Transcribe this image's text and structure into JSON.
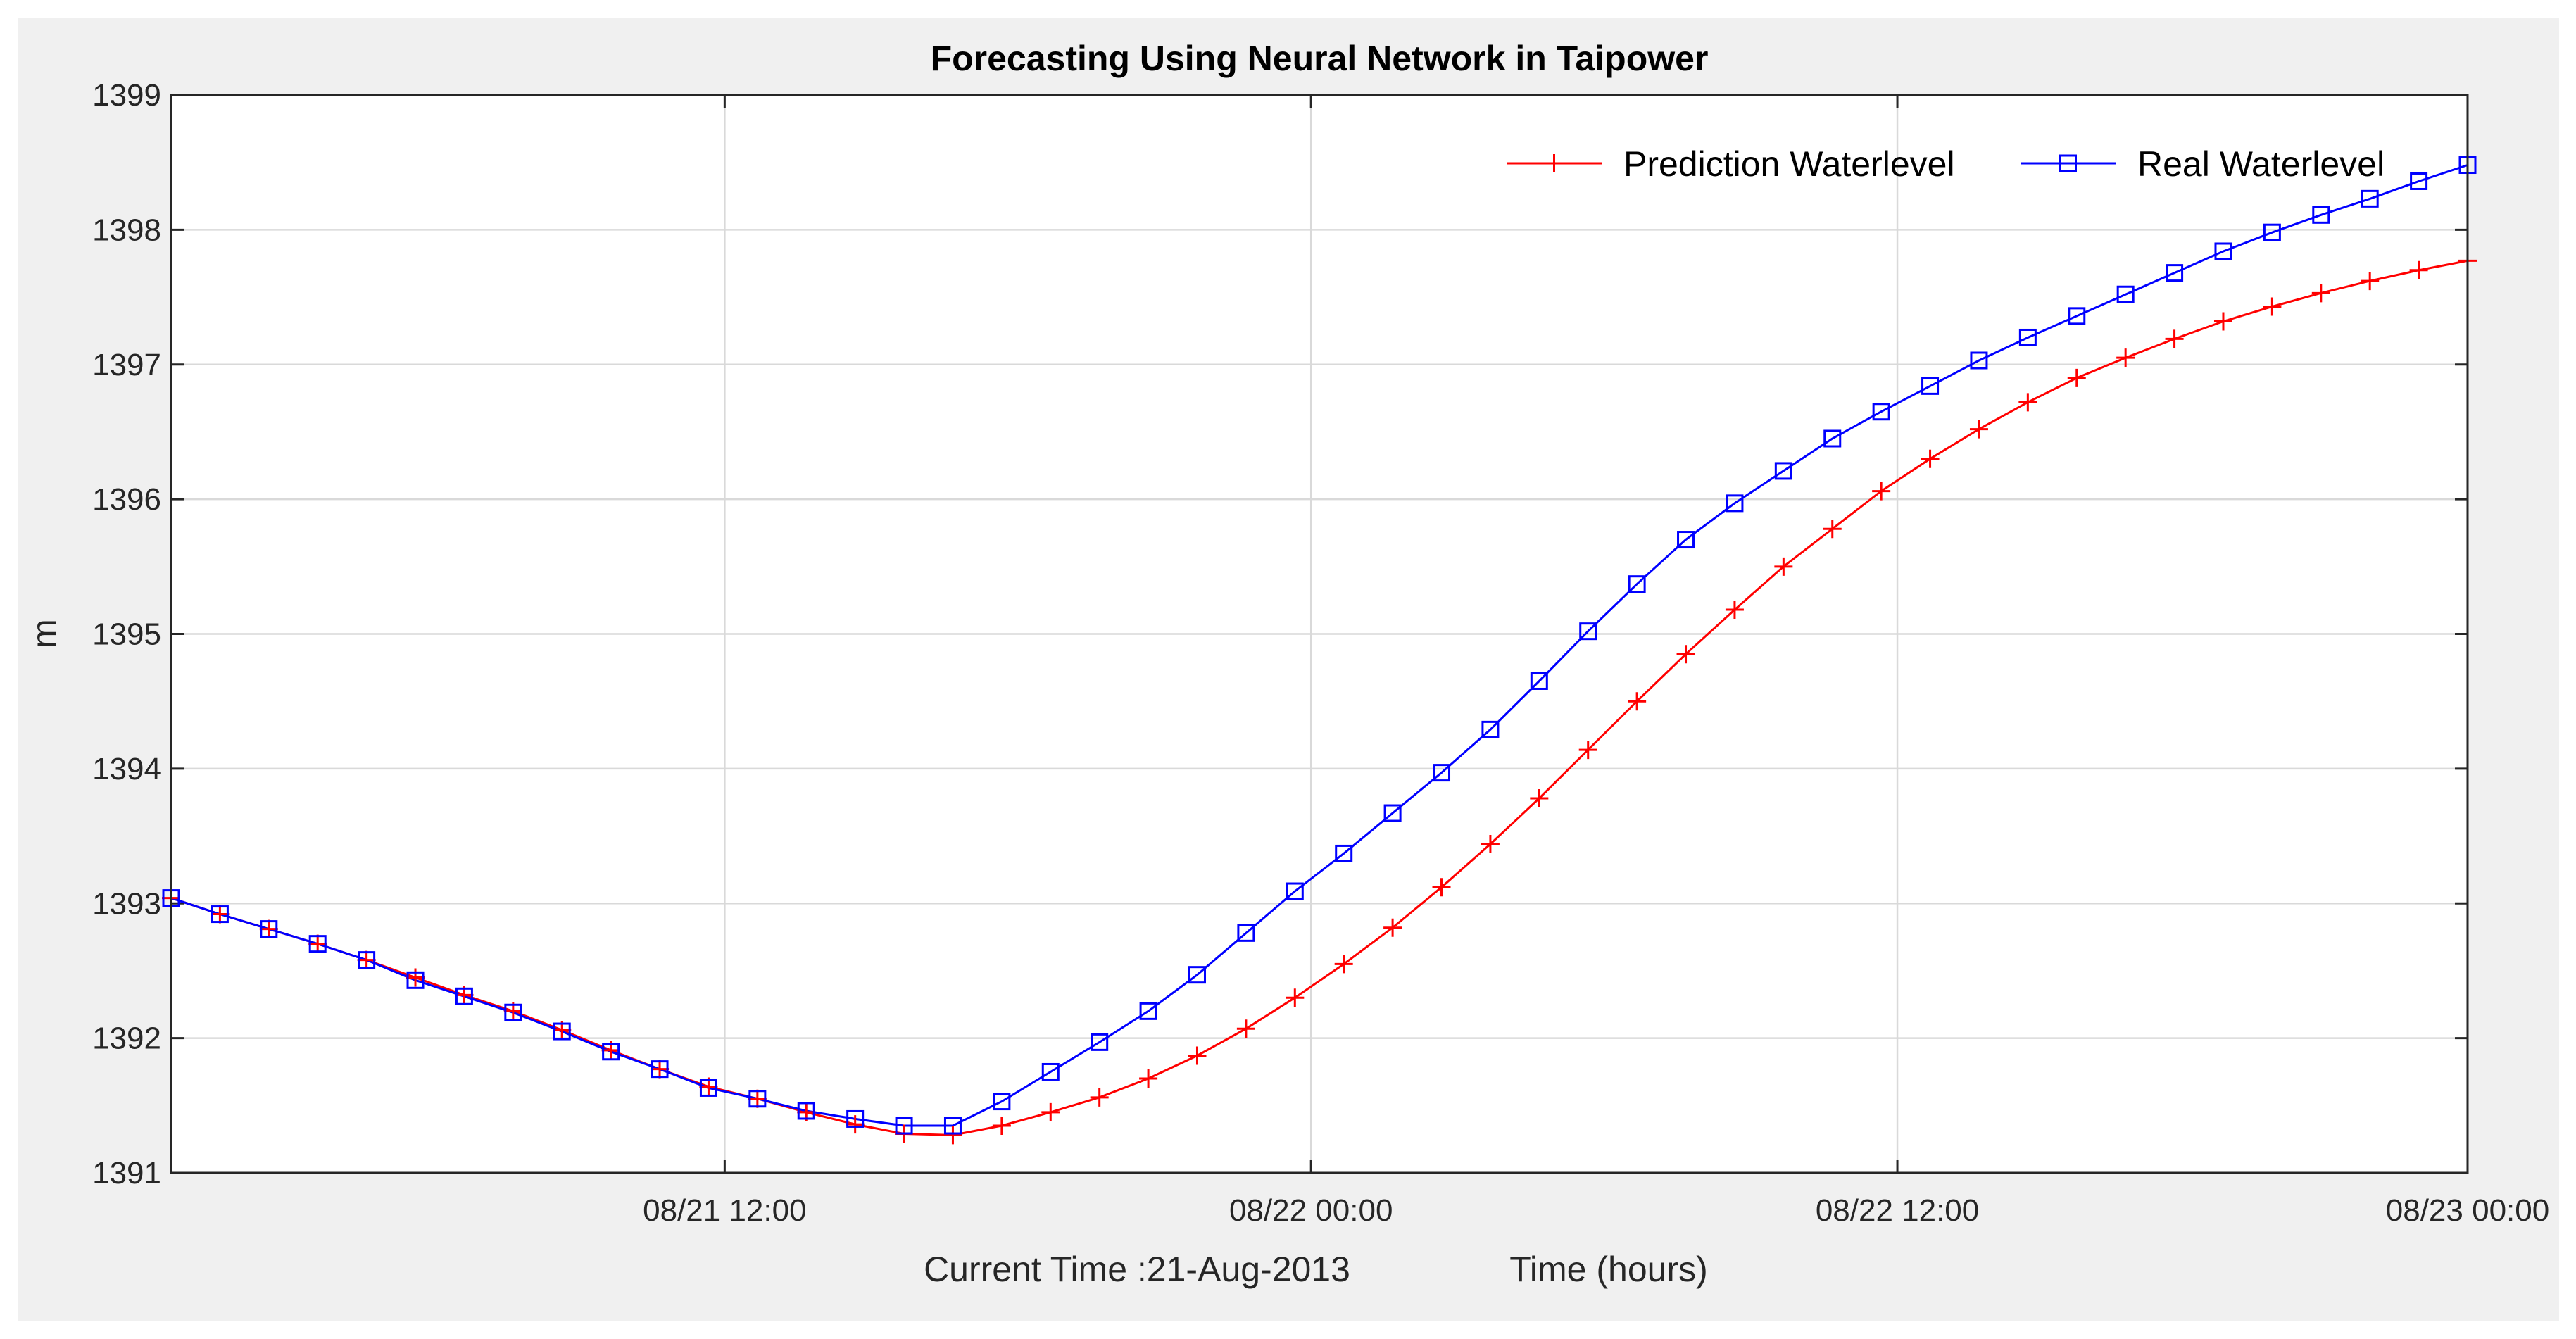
{
  "chart_data": {
    "type": "line",
    "title": "Forecasting Using Neural Network in Taipower",
    "ylabel": "m",
    "xlabel": "Time (hours)",
    "footer_text": "Current Time :21-Aug-2013",
    "ylim": [
      1391,
      1399
    ],
    "xlim": [
      0,
      47
    ],
    "x_ticks": [
      {
        "x": 11.33,
        "label": "08/21 12:00"
      },
      {
        "x": 23.33,
        "label": "08/22 00:00"
      },
      {
        "x": 35.33,
        "label": "08/22 12:00"
      },
      {
        "x": 47,
        "label": "08/23 00:00"
      }
    ],
    "y_ticks": [
      1391,
      1392,
      1393,
      1394,
      1395,
      1396,
      1397,
      1398,
      1399
    ],
    "grid": true,
    "legend_position": "top-right",
    "series": [
      {
        "name": "Prediction Waterlevel",
        "color": "#ff0000",
        "marker": "plus",
        "x": [
          0,
          1,
          2,
          3,
          4,
          5,
          6,
          7,
          8,
          9,
          10,
          11,
          12,
          13,
          14,
          15,
          16,
          17,
          18,
          19,
          20,
          21,
          22,
          23,
          24,
          25,
          26,
          27,
          28,
          29,
          30,
          31,
          32,
          33,
          34,
          35,
          36,
          37,
          38,
          39,
          40,
          41,
          42,
          43,
          44,
          45,
          46,
          47
        ],
        "values": [
          1393.04,
          1392.92,
          1392.81,
          1392.7,
          1392.58,
          1392.45,
          1392.32,
          1392.2,
          1392.06,
          1391.91,
          1391.77,
          1391.64,
          1391.55,
          1391.45,
          1391.36,
          1391.29,
          1391.28,
          1391.35,
          1391.45,
          1391.56,
          1391.7,
          1391.87,
          1392.07,
          1392.3,
          1392.55,
          1392.82,
          1393.12,
          1393.44,
          1393.78,
          1394.14,
          1394.5,
          1394.85,
          1395.18,
          1395.5,
          1395.78,
          1396.06,
          1396.3,
          1396.52,
          1396.72,
          1396.9,
          1397.05,
          1397.19,
          1397.32,
          1397.43,
          1397.53,
          1397.62,
          1397.7,
          1397.77
        ]
      },
      {
        "name": "Real Waterlevel",
        "color": "#0000ff",
        "marker": "square",
        "x": [
          0,
          1,
          2,
          3,
          4,
          5,
          6,
          7,
          8,
          9,
          10,
          11,
          12,
          13,
          14,
          15,
          16,
          17,
          18,
          19,
          20,
          21,
          22,
          23,
          24,
          25,
          26,
          27,
          28,
          29,
          30,
          31,
          32,
          33,
          34,
          35,
          36,
          37,
          38,
          39,
          40,
          41,
          42,
          43,
          44,
          45,
          46,
          47
        ],
        "values": [
          1393.04,
          1392.92,
          1392.81,
          1392.7,
          1392.58,
          1392.43,
          1392.31,
          1392.19,
          1392.05,
          1391.9,
          1391.77,
          1391.63,
          1391.55,
          1391.46,
          1391.4,
          1391.35,
          1391.35,
          1391.53,
          1391.75,
          1391.97,
          1392.2,
          1392.47,
          1392.78,
          1393.09,
          1393.37,
          1393.67,
          1393.97,
          1394.29,
          1394.65,
          1395.02,
          1395.37,
          1395.7,
          1395.97,
          1396.21,
          1396.45,
          1396.65,
          1396.84,
          1397.03,
          1397.2,
          1397.36,
          1397.52,
          1397.68,
          1397.84,
          1397.98,
          1398.11,
          1398.23,
          1398.36,
          1398.48
        ]
      }
    ]
  }
}
